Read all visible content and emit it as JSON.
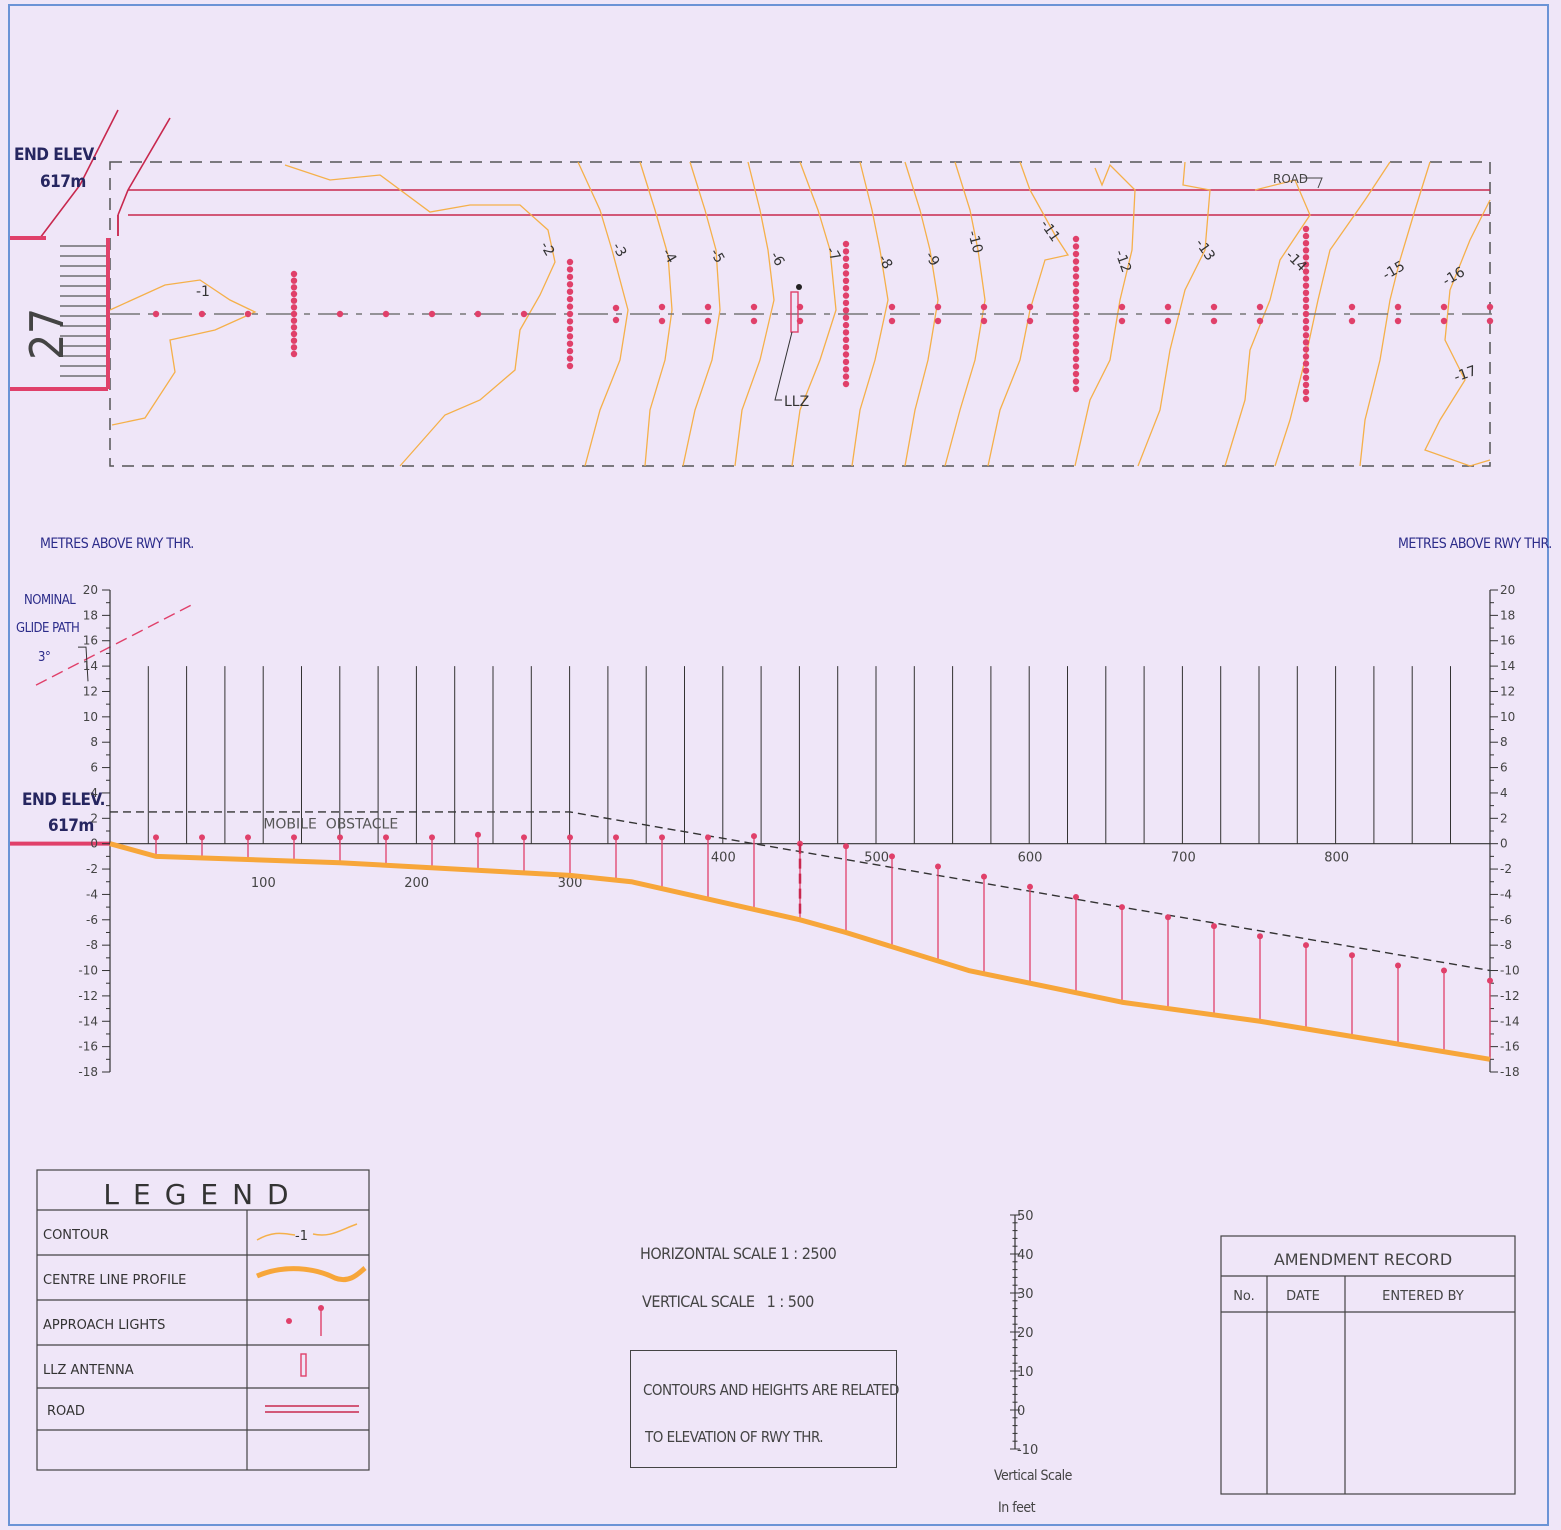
{
  "plan": {
    "end_elev_label": "END ELEV.",
    "end_elev_value": "617m",
    "runway_designator": "27",
    "llz_label": "LLZ",
    "road_label": "ROAD",
    "contour_labels": [
      "-1",
      "-2",
      "-3",
      "-4",
      "-5",
      "-6",
      "-7",
      "-8",
      "-9",
      "-10",
      "-11",
      "-12",
      "-13",
      "-14",
      "-15",
      "-16",
      "-17"
    ]
  },
  "profile": {
    "left_axis_title": "METRES ABOVE RWY THR.",
    "right_axis_title": "METRES ABOVE RWY THR.",
    "glide_path_label": [
      "NOMINAL",
      "GLIDE PATH",
      "3°"
    ],
    "end_elev_label": "END ELEV.",
    "end_elev_value": "617m",
    "mobile_obstacle_label": "MOBILE  OBSTACLE",
    "y_ticks": [
      "20",
      "18",
      "16",
      "14",
      "12",
      "10",
      "8",
      "6",
      "4",
      "2",
      "0",
      "-2",
      "-4",
      "-6",
      "-8",
      "-10",
      "-12",
      "-14",
      "-16",
      "-18"
    ],
    "x_ticks_lower": [
      "100",
      "200",
      "300"
    ],
    "x_ticks_upper": [
      "400",
      "500",
      "600",
      "700",
      "800"
    ]
  },
  "chart_data": {
    "type": "line",
    "xlabel": "",
    "ylabel": "METRES ABOVE RWY THR.",
    "xlim": [
      0,
      900
    ],
    "ylim": [
      -18,
      20
    ],
    "series": [
      {
        "name": "CENTRE LINE PROFILE",
        "x": [
          0,
          30,
          150,
          300,
          340,
          450,
          480,
          560,
          660,
          750,
          900
        ],
        "y": [
          0,
          -1,
          -1.5,
          -2.5,
          -3,
          -6,
          -7,
          -10,
          -12.5,
          -14,
          -17
        ]
      },
      {
        "name": "APPROACH LIGHTS",
        "x": [
          30,
          60,
          90,
          120,
          150,
          180,
          210,
          240,
          270,
          300,
          330,
          360,
          390,
          420,
          450,
          480,
          510,
          540,
          570,
          600,
          630,
          660,
          690,
          720,
          750,
          780,
          810,
          840,
          870,
          900
        ],
        "y": [
          0.5,
          0.5,
          0.5,
          0.5,
          0.5,
          0.5,
          0.5,
          0.7,
          0.5,
          0.5,
          0.5,
          0.5,
          0.5,
          0.6,
          0,
          -0.2,
          -1,
          -1.8,
          -2.6,
          -3.4,
          -4.2,
          -5,
          -5.8,
          -6.5,
          -7.3,
          -8,
          -8.8,
          -9.6,
          -10,
          -10.8
        ]
      },
      {
        "name": "MOBILE OBSTACLE",
        "x": [
          0,
          300,
          900
        ],
        "y": [
          2.5,
          2.5,
          -10
        ]
      }
    ]
  },
  "legend": {
    "title": "LEGEND",
    "rows": [
      "CONTOUR",
      "CENTRE LINE PROFILE",
      "APPROACH LIGHTS",
      "LLZ ANTENNA",
      "ROAD"
    ],
    "contour_sample_label": "-1"
  },
  "scales": {
    "horizontal": "HORIZONTAL SCALE 1 : 2500",
    "vertical": "VERTICAL SCALE   1 : 500"
  },
  "note": {
    "line1": "CONTOURS AND HEIGHTS ARE RELATED",
    "line2": "TO ELEVATION OF RWY THR."
  },
  "vertical_scale_feet": {
    "ticks": [
      "50",
      "40",
      "30",
      "20",
      "10",
      "0",
      "-10"
    ],
    "caption1": "Vertical Scale",
    "caption2": "In feet"
  },
  "amendment": {
    "title": "AMENDMENT RECORD",
    "columns": [
      "No.",
      "DATE",
      "ENTERED BY"
    ]
  },
  "colors": {
    "background": "#efe6f8",
    "contour": "#f5b04a",
    "profile": "#f7a63a",
    "lights": "#e0406a",
    "road": "#c8284e",
    "ink": "#262660"
  }
}
